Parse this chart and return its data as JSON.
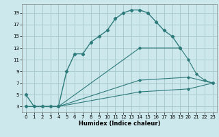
{
  "title": "",
  "xlabel": "Humidex (Indice chaleur)",
  "background_color": "#cce8ec",
  "grid_color": "#aacccc",
  "line_color": "#2d7a7a",
  "xlim": [
    -0.5,
    23.5
  ],
  "ylim": [
    2,
    20.5
  ],
  "xticks": [
    0,
    1,
    2,
    3,
    4,
    5,
    6,
    7,
    8,
    9,
    10,
    11,
    12,
    13,
    14,
    15,
    16,
    17,
    18,
    19,
    20,
    21,
    22,
    23
  ],
  "yticks": [
    3,
    5,
    7,
    9,
    11,
    13,
    15,
    17,
    19
  ],
  "line1_x": [
    0,
    1,
    2,
    3,
    4,
    5,
    6,
    7,
    8,
    9,
    10,
    11,
    12,
    13,
    14,
    15,
    16,
    17,
    18,
    19
  ],
  "line1_y": [
    5,
    3,
    3,
    3,
    3,
    9,
    12,
    12,
    14,
    15,
    16,
    18,
    19,
    19.5,
    19.5,
    19,
    17.5,
    16,
    15,
    13
  ],
  "line2_x": [
    0,
    4,
    14,
    19,
    20,
    21,
    22,
    23
  ],
  "line2_y": [
    3,
    3,
    13,
    13,
    11,
    8.5,
    7.5,
    7
  ],
  "line3_x": [
    0,
    4,
    14,
    20,
    23
  ],
  "line3_y": [
    3,
    3,
    7.5,
    8,
    7
  ],
  "line4_x": [
    0,
    4,
    14,
    20,
    23
  ],
  "line4_y": [
    3,
    3,
    5.5,
    6,
    7
  ]
}
